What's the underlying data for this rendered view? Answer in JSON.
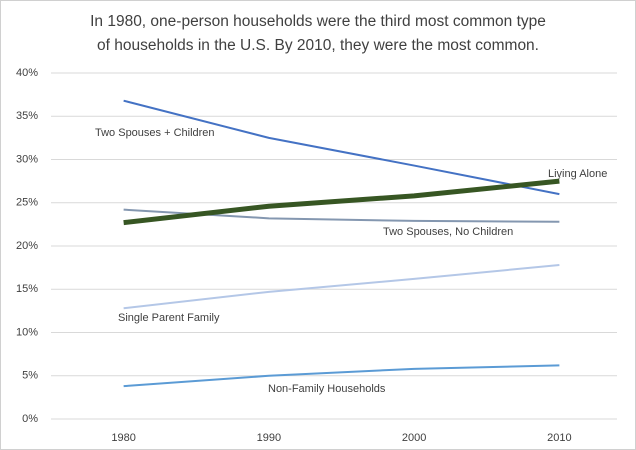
{
  "chart_data": {
    "type": "line",
    "title": [
      "In 1980, one-person households were the third most common type",
      "of households in the U.S. By 2010, they were the most common."
    ],
    "categories": [
      "1980",
      "1990",
      "2000",
      "2010"
    ],
    "series": [
      {
        "name": "Two Spouses + Children",
        "color": "#4472c4",
        "line_width": 2,
        "values": [
          36.8,
          32.5,
          29.3,
          26.0
        ]
      },
      {
        "name": "Two Spouses, No Children",
        "color": "#8497b0",
        "line_width": 2,
        "values": [
          24.2,
          23.2,
          22.9,
          22.8
        ]
      },
      {
        "name": "Single Parent Family",
        "color": "#b4c7e7",
        "line_width": 2,
        "values": [
          12.8,
          14.7,
          16.2,
          17.8
        ]
      },
      {
        "name": "Non-Family Households",
        "color": "#5b9bd5",
        "line_width": 2,
        "values": [
          3.8,
          5.0,
          5.8,
          6.2
        ]
      },
      {
        "name": "Living Alone",
        "color": "#375623",
        "line_width": 5,
        "values": [
          22.7,
          24.6,
          25.8,
          27.5
        ]
      }
    ],
    "ylim": [
      0,
      40
    ],
    "yticks": [
      {
        "value": 0,
        "label": "0%"
      },
      {
        "value": 5,
        "label": "5%"
      },
      {
        "value": 10,
        "label": "10%"
      },
      {
        "value": 15,
        "label": "15%"
      },
      {
        "value": 20,
        "label": "20%"
      },
      {
        "value": 25,
        "label": "25%"
      },
      {
        "value": 30,
        "label": "30%"
      },
      {
        "value": 35,
        "label": "35%"
      },
      {
        "value": 40,
        "label": "40%"
      }
    ],
    "grid": true
  }
}
